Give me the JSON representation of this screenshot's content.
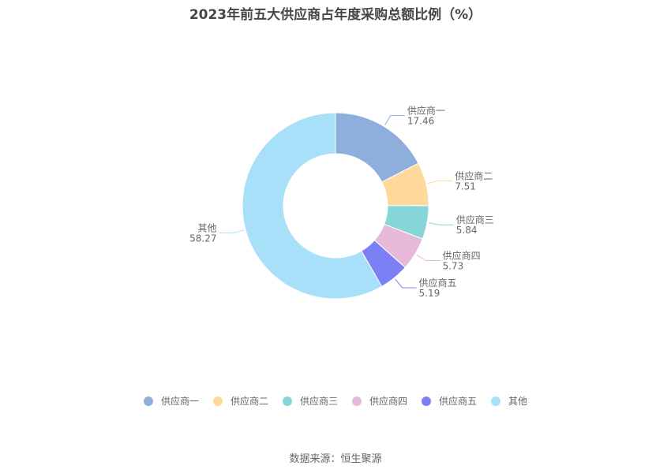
{
  "title": "2023年前五大供应商占年度采购总额比例（%）",
  "source": "数据来源：恒生聚源",
  "chart_data": {
    "type": "pie",
    "subtype": "donut",
    "title": "2023年前五大供应商占年度采购总额比例（%）",
    "categories": [
      "供应商一",
      "供应商二",
      "供应商三",
      "供应商四",
      "供应商五",
      "其他"
    ],
    "values": [
      17.46,
      7.51,
      5.84,
      5.73,
      5.19,
      58.27
    ],
    "colors": [
      "#8eaedb",
      "#fed99b",
      "#86d6d9",
      "#e7b9d8",
      "#7b80f4",
      "#a8dff9"
    ],
    "start_angle": "12 o'clock, clockwise",
    "legend_position": "bottom",
    "unit": "%"
  },
  "legend": [
    {
      "label": "供应商一",
      "color": "#8eaedb"
    },
    {
      "label": "供应商二",
      "color": "#fed99b"
    },
    {
      "label": "供应商三",
      "color": "#86d6d9"
    },
    {
      "label": "供应商四",
      "color": "#e7b9d8"
    },
    {
      "label": "供应商五",
      "color": "#7b80f4"
    },
    {
      "label": "其他",
      "color": "#a8dff9"
    }
  ]
}
